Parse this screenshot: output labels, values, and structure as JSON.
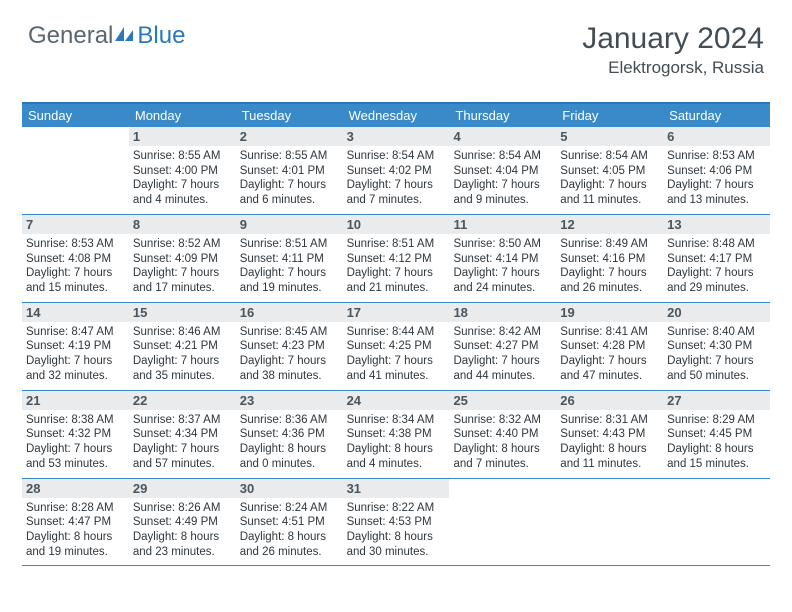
{
  "logo": {
    "word1": "General",
    "word2": "Blue",
    "icon_color": "#2a78bb"
  },
  "title": "January 2024",
  "location": "Elektrogorsk, Russia",
  "colors": {
    "header_bg": "#3a8ac9",
    "header_text": "#ffffff",
    "daynum_bg": "#e9ebec",
    "daynum_text": "#4a555d",
    "rule": "#3a8ac9",
    "body_text": "#2e373e",
    "title_text": "#424d55"
  },
  "dow": [
    "Sunday",
    "Monday",
    "Tuesday",
    "Wednesday",
    "Thursday",
    "Friday",
    "Saturday"
  ],
  "weeks": [
    [
      {
        "n": "",
        "sr": "",
        "ss": "",
        "dl": ""
      },
      {
        "n": "1",
        "sr": "8:55 AM",
        "ss": "4:00 PM",
        "dl": "7 hours and 4 minutes."
      },
      {
        "n": "2",
        "sr": "8:55 AM",
        "ss": "4:01 PM",
        "dl": "7 hours and 6 minutes."
      },
      {
        "n": "3",
        "sr": "8:54 AM",
        "ss": "4:02 PM",
        "dl": "7 hours and 7 minutes."
      },
      {
        "n": "4",
        "sr": "8:54 AM",
        "ss": "4:04 PM",
        "dl": "7 hours and 9 minutes."
      },
      {
        "n": "5",
        "sr": "8:54 AM",
        "ss": "4:05 PM",
        "dl": "7 hours and 11 minutes."
      },
      {
        "n": "6",
        "sr": "8:53 AM",
        "ss": "4:06 PM",
        "dl": "7 hours and 13 minutes."
      }
    ],
    [
      {
        "n": "7",
        "sr": "8:53 AM",
        "ss": "4:08 PM",
        "dl": "7 hours and 15 minutes."
      },
      {
        "n": "8",
        "sr": "8:52 AM",
        "ss": "4:09 PM",
        "dl": "7 hours and 17 minutes."
      },
      {
        "n": "9",
        "sr": "8:51 AM",
        "ss": "4:11 PM",
        "dl": "7 hours and 19 minutes."
      },
      {
        "n": "10",
        "sr": "8:51 AM",
        "ss": "4:12 PM",
        "dl": "7 hours and 21 minutes."
      },
      {
        "n": "11",
        "sr": "8:50 AM",
        "ss": "4:14 PM",
        "dl": "7 hours and 24 minutes."
      },
      {
        "n": "12",
        "sr": "8:49 AM",
        "ss": "4:16 PM",
        "dl": "7 hours and 26 minutes."
      },
      {
        "n": "13",
        "sr": "8:48 AM",
        "ss": "4:17 PM",
        "dl": "7 hours and 29 minutes."
      }
    ],
    [
      {
        "n": "14",
        "sr": "8:47 AM",
        "ss": "4:19 PM",
        "dl": "7 hours and 32 minutes."
      },
      {
        "n": "15",
        "sr": "8:46 AM",
        "ss": "4:21 PM",
        "dl": "7 hours and 35 minutes."
      },
      {
        "n": "16",
        "sr": "8:45 AM",
        "ss": "4:23 PM",
        "dl": "7 hours and 38 minutes."
      },
      {
        "n": "17",
        "sr": "8:44 AM",
        "ss": "4:25 PM",
        "dl": "7 hours and 41 minutes."
      },
      {
        "n": "18",
        "sr": "8:42 AM",
        "ss": "4:27 PM",
        "dl": "7 hours and 44 minutes."
      },
      {
        "n": "19",
        "sr": "8:41 AM",
        "ss": "4:28 PM",
        "dl": "7 hours and 47 minutes."
      },
      {
        "n": "20",
        "sr": "8:40 AM",
        "ss": "4:30 PM",
        "dl": "7 hours and 50 minutes."
      }
    ],
    [
      {
        "n": "21",
        "sr": "8:38 AM",
        "ss": "4:32 PM",
        "dl": "7 hours and 53 minutes."
      },
      {
        "n": "22",
        "sr": "8:37 AM",
        "ss": "4:34 PM",
        "dl": "7 hours and 57 minutes."
      },
      {
        "n": "23",
        "sr": "8:36 AM",
        "ss": "4:36 PM",
        "dl": "8 hours and 0 minutes."
      },
      {
        "n": "24",
        "sr": "8:34 AM",
        "ss": "4:38 PM",
        "dl": "8 hours and 4 minutes."
      },
      {
        "n": "25",
        "sr": "8:32 AM",
        "ss": "4:40 PM",
        "dl": "8 hours and 7 minutes."
      },
      {
        "n": "26",
        "sr": "8:31 AM",
        "ss": "4:43 PM",
        "dl": "8 hours and 11 minutes."
      },
      {
        "n": "27",
        "sr": "8:29 AM",
        "ss": "4:45 PM",
        "dl": "8 hours and 15 minutes."
      }
    ],
    [
      {
        "n": "28",
        "sr": "8:28 AM",
        "ss": "4:47 PM",
        "dl": "8 hours and 19 minutes."
      },
      {
        "n": "29",
        "sr": "8:26 AM",
        "ss": "4:49 PM",
        "dl": "8 hours and 23 minutes."
      },
      {
        "n": "30",
        "sr": "8:24 AM",
        "ss": "4:51 PM",
        "dl": "8 hours and 26 minutes."
      },
      {
        "n": "31",
        "sr": "8:22 AM",
        "ss": "4:53 PM",
        "dl": "8 hours and 30 minutes."
      },
      {
        "n": "",
        "sr": "",
        "ss": "",
        "dl": ""
      },
      {
        "n": "",
        "sr": "",
        "ss": "",
        "dl": ""
      },
      {
        "n": "",
        "sr": "",
        "ss": "",
        "dl": ""
      }
    ]
  ],
  "labels": {
    "sunrise": "Sunrise:",
    "sunset": "Sunset:",
    "daylight": "Daylight:"
  }
}
